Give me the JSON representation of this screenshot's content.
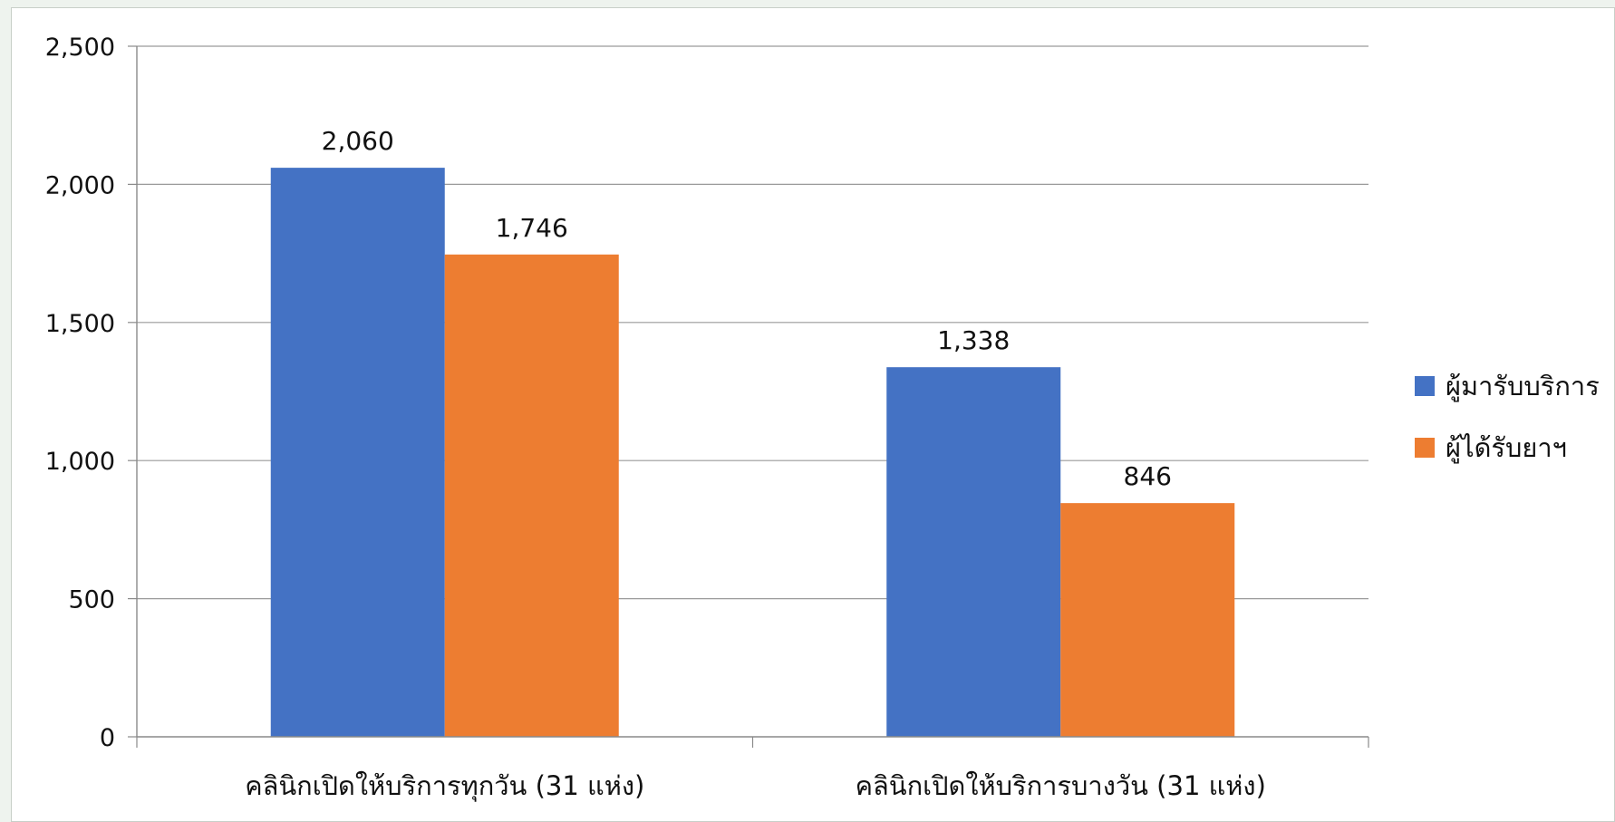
{
  "chart_data": {
    "type": "bar",
    "categories": [
      "คลินิกเปิดให้บริการทุกวัน (31 แห่ง)",
      "คลินิกเปิดให้บริการบางวัน (31 แห่ง)"
    ],
    "series": [
      {
        "name": "ผู้มารับบริการ",
        "values": [
          2060,
          1338
        ],
        "color": "#4472C4"
      },
      {
        "name": "ผู้ได้รับยาฯ",
        "values": [
          1746,
          846
        ],
        "color": "#ED7D31"
      }
    ],
    "data_labels": [
      [
        "2,060",
        "1,338"
      ],
      [
        "1,746",
        "846"
      ]
    ],
    "yticks": [
      "0",
      "500",
      "1,000",
      "1,500",
      "2,000",
      "2,500"
    ],
    "ylim": [
      0,
      2500
    ],
    "grid": true,
    "legend_position": "right"
  }
}
